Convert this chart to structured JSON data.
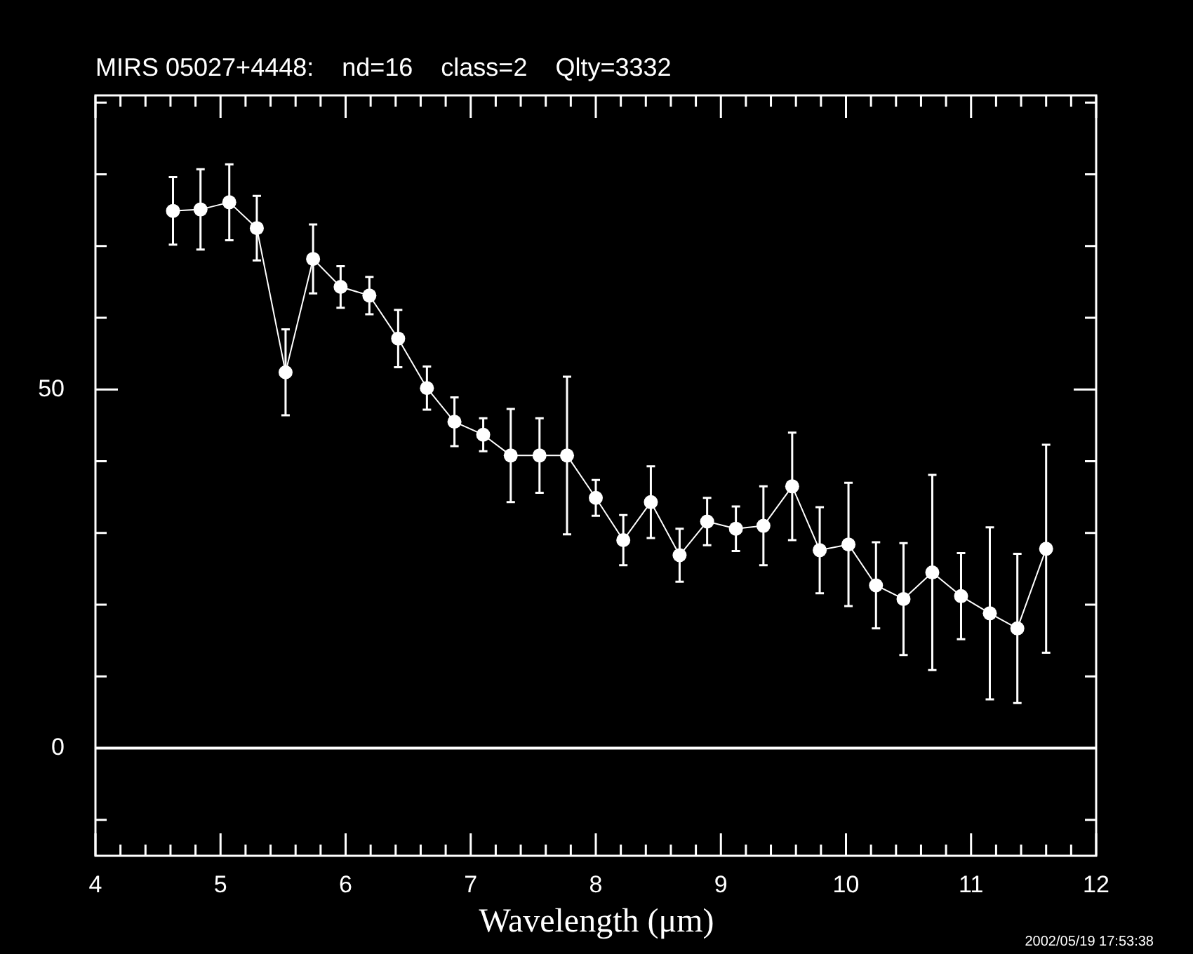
{
  "chart_data": {
    "type": "line",
    "title": "MIRS 05027+4448:    nd=16    class=2    Qlty=3332",
    "xlabel": "Wavelength (μm)",
    "x": [
      4.62,
      4.84,
      5.07,
      5.29,
      5.52,
      5.74,
      5.96,
      6.19,
      6.42,
      6.65,
      6.87,
      7.1,
      7.32,
      7.55,
      7.77,
      8.0,
      8.22,
      8.44,
      8.67,
      8.89,
      9.12,
      9.34,
      9.57,
      9.79,
      10.02,
      10.24,
      10.46,
      10.69,
      10.92,
      11.15,
      11.37,
      11.6
    ],
    "values": [
      74.9,
      75.1,
      76.1,
      72.5,
      52.4,
      68.2,
      64.3,
      63.1,
      57.1,
      50.2,
      45.5,
      43.7,
      40.8,
      40.8,
      40.8,
      34.9,
      29.0,
      34.3,
      26.9,
      31.6,
      30.6,
      31.0,
      36.5,
      27.6,
      28.4,
      22.7,
      20.8,
      24.5,
      21.2,
      18.8,
      16.7,
      27.8
    ],
    "errors": [
      4.7,
      5.6,
      5.3,
      4.5,
      6.0,
      4.8,
      2.9,
      2.6,
      4.0,
      3.0,
      3.4,
      2.3,
      6.5,
      5.2,
      11.0,
      2.5,
      3.5,
      5.0,
      3.7,
      3.3,
      3.1,
      5.5,
      7.5,
      6.0,
      8.6,
      6.0,
      7.8,
      13.6,
      6.0,
      12.0,
      10.4,
      14.5
    ],
    "color": "#ffffff",
    "marker": "circle",
    "line_style": "solid",
    "xlim": [
      4,
      12
    ],
    "ylim": [
      -15,
      91
    ],
    "xticks": [
      4,
      {
        "value": 4.2,
        "label": null
      },
      {
        "value": 4.4,
        "label": null
      },
      {
        "value": 4.6,
        "label": null
      },
      {
        "value": 4.8,
        "label": null
      },
      5,
      {
        "value": 5.2,
        "label": null
      },
      {
        "value": 5.4,
        "label": null
      },
      {
        "value": 5.6,
        "label": null
      },
      {
        "value": 5.8,
        "label": null
      },
      6,
      {
        "value": 6.2,
        "label": null
      },
      {
        "value": 6.4,
        "label": null
      },
      {
        "value": 6.6,
        "label": null
      },
      {
        "value": 6.8,
        "label": null
      },
      7,
      {
        "value": 7.2,
        "label": null
      },
      {
        "value": 7.4,
        "label": null
      },
      {
        "value": 7.6,
        "label": null
      },
      {
        "value": 7.8,
        "label": null
      },
      8,
      {
        "value": 8.2,
        "label": null
      },
      {
        "value": 8.4,
        "label": null
      },
      {
        "value": 8.6,
        "label": null
      },
      {
        "value": 8.8,
        "label": null
      },
      9,
      {
        "value": 9.2,
        "label": null
      },
      {
        "value": 9.4,
        "label": null
      },
      {
        "value": 9.6,
        "label": null
      },
      {
        "value": 9.8,
        "label": null
      },
      10,
      {
        "value": 10.2,
        "label": null
      },
      {
        "value": 10.4,
        "label": null
      },
      {
        "value": 10.6,
        "label": null
      },
      {
        "value": 10.8,
        "label": null
      },
      11,
      {
        "value": 11.2,
        "label": null
      },
      {
        "value": 11.4,
        "label": null
      },
      {
        "value": 11.6,
        "label": null
      },
      {
        "value": 11.8,
        "label": null
      },
      12
    ],
    "yticks": [
      {
        "value": -10,
        "label": null
      },
      0,
      {
        "value": 10,
        "label": null
      },
      {
        "value": 20,
        "label": null
      },
      {
        "value": 30,
        "label": null
      },
      {
        "value": 40,
        "label": null
      },
      50,
      {
        "value": 60,
        "label": null
      },
      {
        "value": 70,
        "label": null
      },
      {
        "value": 80,
        "label": null
      },
      {
        "value": 90,
        "label": null
      }
    ],
    "ref_lines": [
      {
        "axis": "y",
        "value": 0,
        "color": "#ffffff",
        "line_style": "solid"
      }
    ],
    "annotations": [
      "2002/05/19 17:53:38"
    ]
  }
}
